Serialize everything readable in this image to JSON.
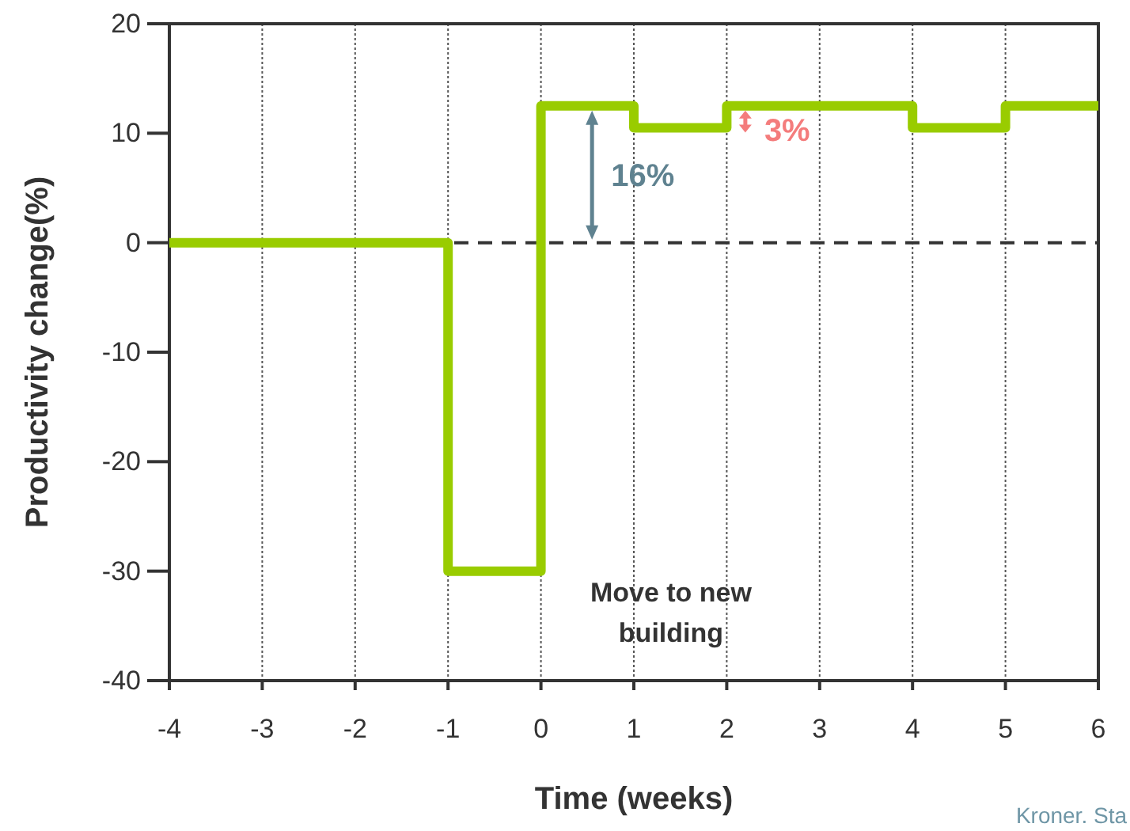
{
  "chart_data": {
    "type": "step",
    "xlabel": "Time (weeks)",
    "ylabel": "Productivity change(%)",
    "x": [
      -4,
      -1,
      0,
      1,
      2,
      4,
      5,
      6
    ],
    "series": [
      {
        "color": "#99cc00",
        "values": [
          0,
          -30,
          12.5,
          10.5,
          12.5,
          10.5,
          12.5,
          12.5
        ]
      }
    ],
    "xlim": [
      -4,
      6
    ],
    "xticks": [
      -4,
      -3,
      -2,
      -1,
      0,
      1,
      2,
      3,
      4,
      5,
      6
    ],
    "ylim": [
      -40,
      20
    ],
    "yticks": [
      -40,
      -30,
      -20,
      -10,
      0,
      10,
      20
    ],
    "grid": "x",
    "line_style": "solid",
    "marker": "none",
    "ref_lines": [
      {
        "axis": "y",
        "value": 0,
        "color": "#333333",
        "line_style": "dashed"
      }
    ],
    "annotations": [
      {
        "text": "16%",
        "x": 0.55,
        "y": 0
      },
      "3%",
      "Move to new building",
      "Kroner. Sta"
    ]
  }
}
